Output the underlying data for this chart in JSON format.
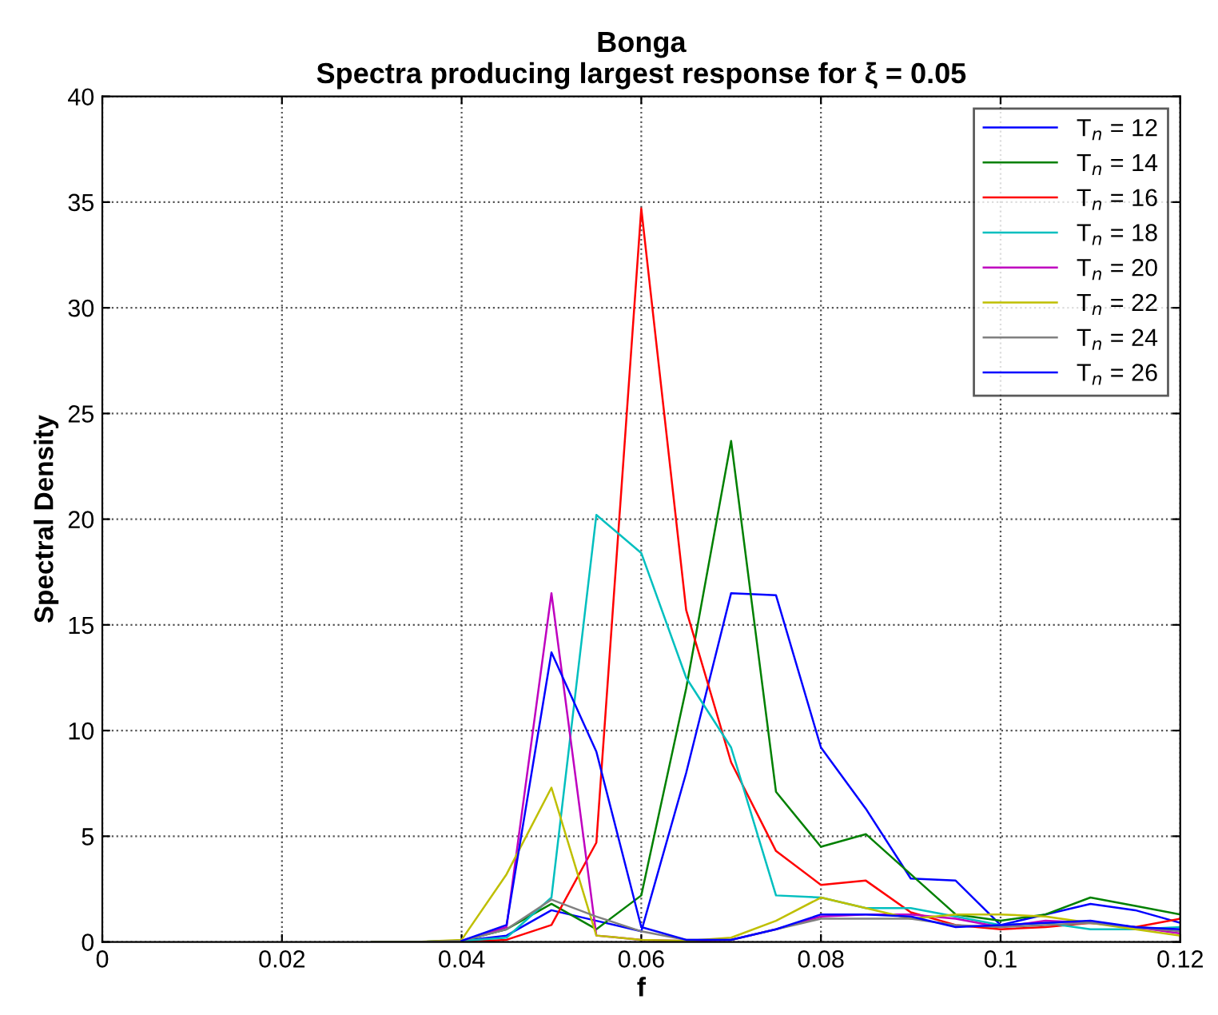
{
  "chart_data": {
    "type": "line",
    "title": "Bonga\nSpectra producing largest response for ξ = 0.05",
    "xlabel": "f",
    "ylabel": "Spectral Density",
    "x": [
      0.03,
      0.035,
      0.04,
      0.045,
      0.05,
      0.055,
      0.06,
      0.065,
      0.07,
      0.075,
      0.08,
      0.085,
      0.09,
      0.095,
      0.1,
      0.105,
      0.11,
      0.115,
      0.12
    ],
    "series": [
      {
        "name": "T$_{n}$ = 12",
        "color": "#0000ff",
        "values": [
          0,
          0,
          0.05,
          0.3,
          1.5,
          1.0,
          0.5,
          8,
          16.5,
          16.4,
          9.2,
          6.3,
          3.0,
          2.9,
          0.8,
          1.3,
          1.8,
          1.5,
          0.9
        ]
      },
      {
        "name": "T$_{n}$ = 14",
        "color": "#008000",
        "values": [
          0,
          0,
          0.05,
          0.6,
          1.8,
          0.6,
          2.2,
          12,
          23.7,
          7.1,
          4.5,
          5.1,
          3.2,
          1.3,
          1.0,
          1.3,
          2.1,
          1.7,
          1.3
        ]
      },
      {
        "name": "T$_{n}$ = 16",
        "color": "#ff0000",
        "values": [
          null,
          null,
          0,
          0.1,
          0.8,
          4.7,
          34.7,
          15.7,
          8.5,
          4.3,
          2.7,
          2.9,
          1.4,
          0.8,
          0.6,
          0.7,
          0.9,
          0.7,
          1.1
        ]
      },
      {
        "name": "T$_{n}$ = 18",
        "color": "#00bfbf",
        "values": [
          0,
          0,
          0.05,
          0.2,
          2.1,
          20.2,
          18.4,
          12.5,
          9.2,
          2.2,
          2.1,
          1.6,
          1.6,
          1.2,
          0.8,
          0.9,
          0.6,
          0.6,
          0.7
        ]
      },
      {
        "name": "T$_{n}$ = 20",
        "color": "#bf00bf",
        "values": [
          null,
          null,
          0.05,
          0.7,
          16.5,
          0.3,
          0.1,
          0.05,
          0.1,
          0.6,
          1.2,
          1.3,
          1.3,
          1.1,
          0.7,
          1.0,
          0.9,
          0.7,
          0.4
        ]
      },
      {
        "name": "T$_{n}$ = 22",
        "color": "#bfbf00",
        "values": [
          0,
          0,
          0.1,
          3.2,
          7.3,
          0.3,
          0.1,
          0.05,
          0.2,
          1.0,
          2.1,
          1.6,
          1.1,
          1.3,
          1.3,
          1.2,
          0.9,
          0.6,
          0.3
        ]
      },
      {
        "name": "T$_{n}$ = 24",
        "color": "#808080",
        "values": [
          0,
          0,
          0.05,
          0.6,
          2.0,
          1.2,
          0.5,
          0.1,
          0.1,
          0.6,
          1.1,
          1.1,
          1.1,
          0.8,
          0.7,
          0.8,
          0.9,
          0.7,
          0.5
        ]
      },
      {
        "name": "T$_{n}$ = 26",
        "color": "#0000ff",
        "values": [
          null,
          null,
          0.05,
          0.8,
          13.7,
          9.0,
          0.7,
          0.1,
          0.1,
          0.6,
          1.3,
          1.3,
          1.2,
          0.7,
          0.8,
          0.9,
          1.0,
          0.7,
          0.6
        ]
      }
    ],
    "xlim": [
      0,
      0.12
    ],
    "xticks": [
      0,
      0.02,
      0.04,
      0.06,
      0.08,
      0.1,
      0.12
    ],
    "ylim": [
      0,
      40
    ],
    "yticks": [
      0,
      5,
      10,
      15,
      20,
      25,
      30,
      35,
      40
    ],
    "grid": true,
    "legend": "top right",
    "line_style": "solid",
    "marker": "none"
  }
}
